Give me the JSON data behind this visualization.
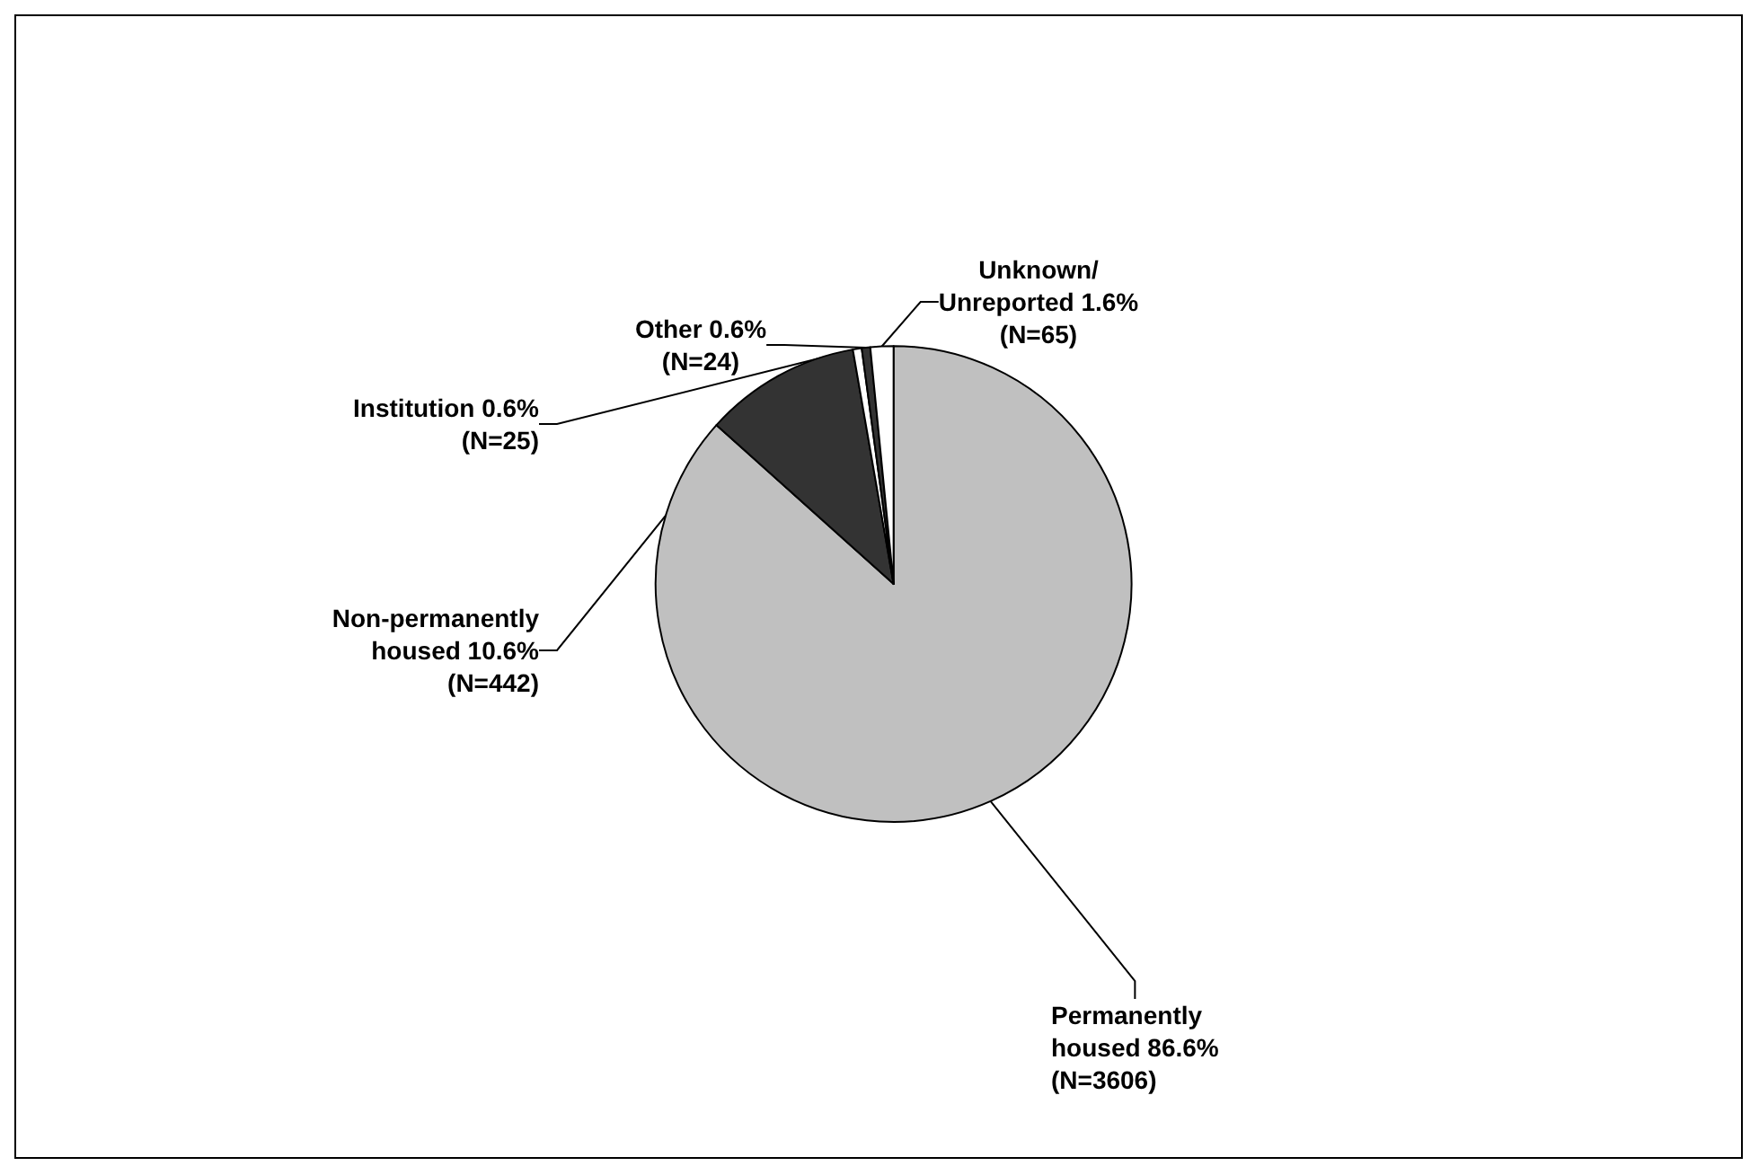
{
  "chart_data": {
    "type": "pie",
    "categories": [
      "Permanently\nhoused",
      "Non-permanently\nhoused",
      "Institution",
      "Other",
      "Unknown/\nUnreported"
    ],
    "values": [
      3606,
      442,
      25,
      24,
      65
    ],
    "value_labels": [
      "86.6%\n(N=3606)",
      "10.6%\n(N=442)",
      "0.6%\n(N=25)",
      "0.6%\n(N=24)",
      "1.6%\n(N=65)"
    ],
    "colors": [
      "#c0c0c0",
      "#333333",
      "#ffffff",
      "#333333",
      "#ffffff"
    ],
    "legend": false
  }
}
